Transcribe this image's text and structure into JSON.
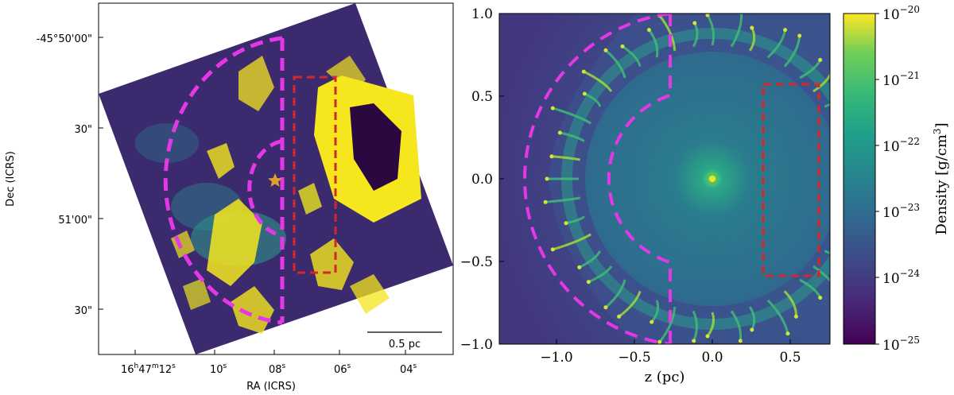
{
  "left_panel": {
    "ylabel": "Dec (ICRS)",
    "xlabel": "RA (ICRS)",
    "dec_ticks": [
      {
        "text": "-45°50'00\""
      },
      {
        "text": "30\""
      },
      {
        "text": "51'00\""
      },
      {
        "text": "30\""
      }
    ],
    "ra_ticks": [
      {
        "main": "16",
        "h": "h",
        "mid": "47",
        "m": "m",
        "sec": "12",
        "s": "s"
      },
      {
        "main": "10",
        "s": "s"
      },
      {
        "main": "08",
        "s": "s"
      },
      {
        "main": "06",
        "s": "s"
      },
      {
        "main": "04",
        "s": "s"
      }
    ],
    "scalebar_label": "0.5 pc",
    "colors": {
      "magenta": "#e637e6",
      "red": "#d62728",
      "star": "#e0a030",
      "yellow": "#f5e61e",
      "bg": "#3b2a6e"
    }
  },
  "right_panel": {
    "xlabel": "z (pc)",
    "xticks": [
      "−1.0",
      "−0.5",
      "0.0",
      "0.5"
    ],
    "yticks": [
      "1.0",
      "0.5",
      "0.0",
      "−0.5",
      "−1.0"
    ],
    "colorbar": {
      "label": "Density [g/cm",
      "label_sup": "3",
      "label_end": "]",
      "ticks": [
        {
          "base": "10",
          "exp": "−20"
        },
        {
          "base": "10",
          "exp": "−21"
        },
        {
          "base": "10",
          "exp": "−22"
        },
        {
          "base": "10",
          "exp": "−23"
        },
        {
          "base": "10",
          "exp": "−24"
        },
        {
          "base": "10",
          "exp": "−25"
        }
      ],
      "colormap": "viridis"
    }
  }
}
